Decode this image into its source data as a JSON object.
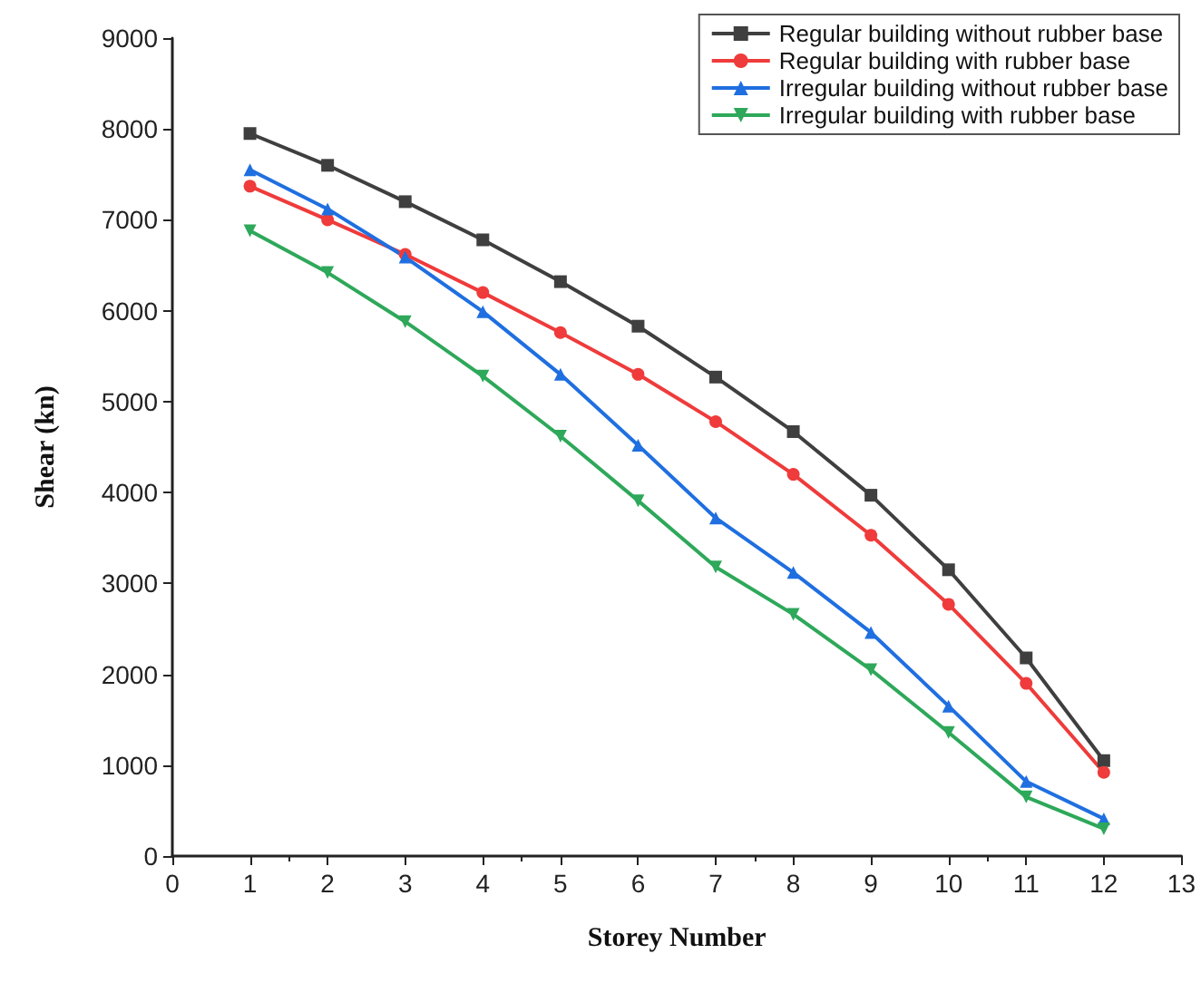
{
  "chart_data": {
    "type": "line",
    "xlabel": "Storey Number",
    "ylabel": "Shear (kn)",
    "x": [
      1,
      2,
      3,
      4,
      5,
      6,
      7,
      8,
      9,
      10,
      11,
      12
    ],
    "series": [
      {
        "name": "Regular building without rubber base",
        "color": "#3f3f3f",
        "marker": "square",
        "values": [
          7950,
          7600,
          7200,
          6780,
          6320,
          5830,
          5270,
          4670,
          3970,
          3150,
          2180,
          1050
        ]
      },
      {
        "name": "Regular building with rubber base",
        "color": "#ef3b3b",
        "marker": "circle",
        "values": [
          7370,
          7000,
          6620,
          6200,
          5760,
          5300,
          4780,
          4200,
          3530,
          2770,
          1900,
          920
        ]
      },
      {
        "name": "Irregular building without rubber base",
        "color": "#1f6fe0",
        "marker": "triangle",
        "values": [
          7550,
          7120,
          6590,
          5990,
          5300,
          4520,
          3720,
          3120,
          2460,
          1650,
          820,
          410
        ]
      },
      {
        "name": "Irregular building with rubber base",
        "color": "#2ea85a",
        "marker": "triangle-down",
        "values": [
          6880,
          6420,
          5880,
          5280,
          4620,
          3910,
          3180,
          2660,
          2050,
          1360,
          650,
          300
        ]
      }
    ],
    "xlim": [
      0,
      13
    ],
    "xticks": [
      0,
      1,
      2,
      3,
      4,
      5,
      6,
      7,
      8,
      9,
      10,
      11,
      12,
      13
    ],
    "ylim": [
      0,
      9000
    ],
    "yticks": [
      0,
      1000,
      2000,
      3000,
      4000,
      5000,
      6000,
      7000,
      8000,
      9000
    ],
    "grid": false,
    "legend": "top right",
    "line_style": "solid"
  }
}
